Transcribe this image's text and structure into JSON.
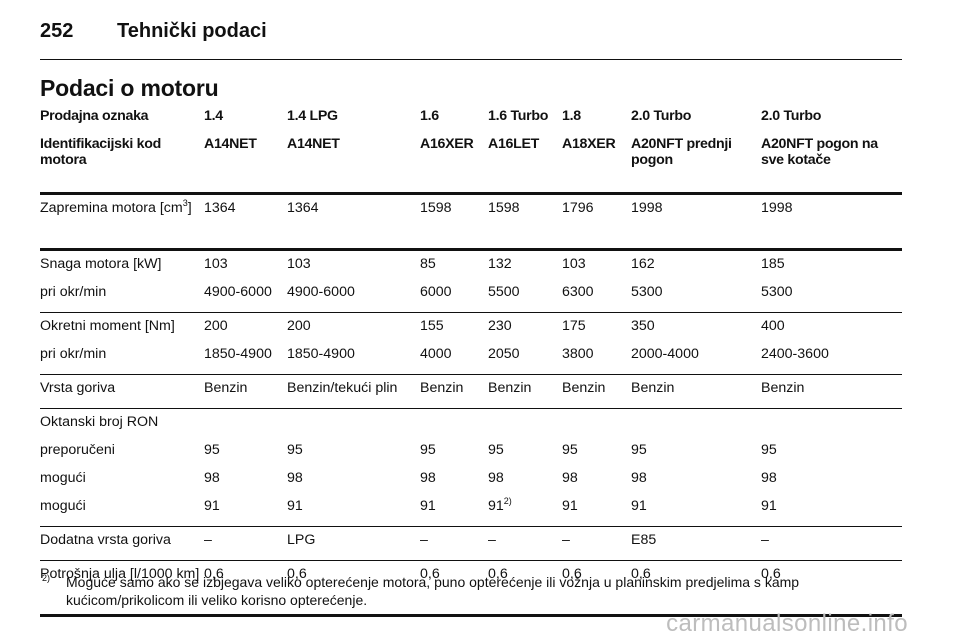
{
  "page": {
    "number": "252",
    "header": "Tehnički podaci"
  },
  "section_title": "Podaci o motoru",
  "table": {
    "header_row1": [
      "Prodajna oznaka",
      "1.4",
      "1.4 LPG",
      "1.6",
      "1.6 Turbo",
      "1.8",
      "2.0 Turbo",
      "2.0 Turbo"
    ],
    "header_row2": [
      "Identifikacijski kod motora",
      "A14NET",
      "A14NET",
      "A16XER",
      "A16LET",
      "A18XER",
      "A20NFT prednji pogon",
      "A20NFT pogon na sve kotače"
    ],
    "displacement": {
      "label": "Zapremina motora [cm",
      "label_sup": "3",
      "label_end": "]",
      "values": [
        "1364",
        "1364",
        "1598",
        "1598",
        "1796",
        "1998",
        "1998"
      ]
    },
    "power": {
      "label": "Snaga motora [kW]",
      "values": [
        "103",
        "103",
        "85",
        "132",
        "103",
        "162",
        "185"
      ]
    },
    "power_rpm": {
      "label": "pri okr/min",
      "values": [
        "4900-6000",
        "4900-6000",
        "6000",
        "5500",
        "6300",
        "5300",
        "5300"
      ]
    },
    "torque": {
      "label": "Okretni moment [Nm]",
      "values": [
        "200",
        "200",
        "155",
        "230",
        "175",
        "350",
        "400"
      ]
    },
    "torque_rpm": {
      "label": "pri okr/min",
      "values": [
        "1850-4900",
        "1850-4900",
        "4000",
        "2050",
        "3800",
        "2000-4000",
        "2400-3600"
      ]
    },
    "fuel_type": {
      "label": "Vrsta goriva",
      "values": [
        "Benzin",
        "Benzin/tekući plin",
        "Benzin",
        "Benzin",
        "Benzin",
        "Benzin",
        "Benzin"
      ]
    },
    "octane": {
      "label": "Oktanski broj RON"
    },
    "recommended": {
      "label": "preporučeni",
      "values": [
        "95",
        "95",
        "95",
        "95",
        "95",
        "95",
        "95"
      ]
    },
    "possible1": {
      "label": "mogući",
      "values": [
        "98",
        "98",
        "98",
        "98",
        "98",
        "98",
        "98"
      ]
    },
    "possible2": {
      "label": "mogući",
      "values": [
        "91",
        "91",
        "91",
        "91",
        "91",
        "91",
        "91"
      ],
      "sup_4": "2)"
    },
    "additional_fuel": {
      "label": "Dodatna vrsta goriva",
      "values": [
        "–",
        "LPG",
        "–",
        "–",
        "–",
        "E85",
        "–"
      ]
    },
    "oil": {
      "label": "Potrošnja ulja [l/1000 km]",
      "values": [
        "0,6",
        "0,6",
        "0,6",
        "0,6",
        "0,6",
        "0,6",
        "0,6"
      ]
    }
  },
  "footnote": {
    "mark": "2)",
    "text": "Moguće samo ako se izbjegava veliko opterećenje motora, puno opterećenje ili vožnja u planinskim predjelima s kamp kućicom/prikolicom ili veliko korisno opterećenje."
  },
  "watermark": "carmanualsonline.info"
}
